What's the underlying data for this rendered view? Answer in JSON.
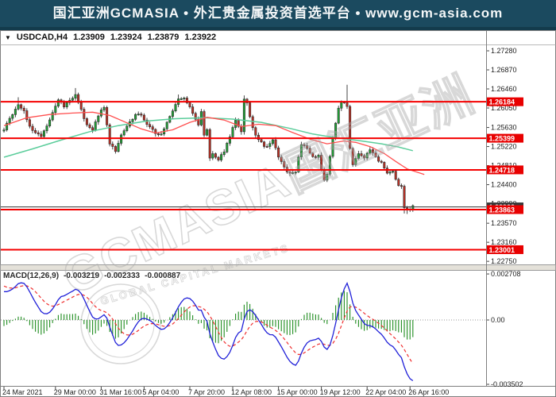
{
  "banner": {
    "text": "国汇亚洲GCMASIA • 外汇贵金属投资首选平台 • www.gcm-asia.com",
    "bg_color": "#1B4A5F",
    "strip_color": "#133B4C"
  },
  "window": {
    "title_symbol": "USDCAD,H4",
    "open": "1.23909",
    "high": "1.23924",
    "low": "1.23879",
    "close": "1.23922",
    "dropdown_icon": "▼"
  },
  "watermark": {
    "brand": "GCMASIA国汇亚洲",
    "caption": "GLOBAL CAPITAL MARKETS"
  },
  "price_axis": {
    "labels": [
      "1.27280",
      "1.26870",
      "1.26460",
      "1.26050",
      "1.25630",
      "1.25220",
      "1.24810",
      "1.24400",
      "1.23990",
      "1.23570",
      "1.23160",
      "1.22750"
    ],
    "level_labels": [
      {
        "text": "1.26184",
        "price": 1.26184
      },
      {
        "text": "1.25399",
        "price": 1.25399
      },
      {
        "text": "1.24718",
        "price": 1.24718
      },
      {
        "text": "1.23863",
        "price": 1.23863
      },
      {
        "text": "1.23001",
        "price": 1.23001
      }
    ],
    "current_price_label": {
      "text": "1.23922",
      "price": 1.23922
    }
  },
  "time_axis": {
    "labels": [
      {
        "text": "24 Mar 2021",
        "bar": 0
      },
      {
        "text": "29 Mar 00:00",
        "bar": 18
      },
      {
        "text": "31 Mar 16:00",
        "bar": 34
      },
      {
        "text": "5 Apr 04:00",
        "bar": 49
      },
      {
        "text": "7 Apr 20:00",
        "bar": 65
      },
      {
        "text": "12 Apr 08:00",
        "bar": 80
      },
      {
        "text": "15 Apr 00:00",
        "bar": 96
      },
      {
        "text": "19 Apr 12:00",
        "bar": 111
      },
      {
        "text": "22 Apr 04:00",
        "bar": 127
      },
      {
        "text": "26 Apr 16:00",
        "bar": 142
      }
    ]
  },
  "macd_panel": {
    "label": "MACD(12,26,9)",
    "value_main": "-0.003219",
    "value_signal": "-0.002333",
    "value_hist": "-0.000887",
    "axis_labels": [
      {
        "text": "0.002708",
        "value": 0.002708
      },
      {
        "text": "0.00",
        "value": 0
      },
      {
        "text": "-0.003502",
        "value": -0.003502
      }
    ]
  },
  "colors": {
    "candle_up": "#21A437",
    "candle_down": "#BE3226",
    "candle_border": "#2a2a2a",
    "wick": "#333333",
    "h_level": "#F40000",
    "current_line": "#4a4a4a",
    "ma_fast": "#FF5050",
    "ma_slow": "#5BCD9B",
    "macd_line": "#2020D8",
    "signal_line": "#F03030",
    "hist": "#1E8C1E",
    "badge_red": "#E80000",
    "badge_dark": "#3A3A3A",
    "frame": "#7F7F7F",
    "axis_text": "#1c1c1c",
    "watermark": "#A9A9A9"
  },
  "chart_data": {
    "type": "candlestick_with_macd",
    "symbol": "USDCAD",
    "timeframe": "H4",
    "visible_bars": 144,
    "price_range_labels": [
      1.2728,
      1.2275
    ],
    "h_levels": [
      1.26184,
      1.25399,
      1.24718,
      1.23863,
      1.23001
    ],
    "current_price_line": 1.23922,
    "close_anchors": [
      [
        0,
        1.256
      ],
      [
        1,
        1.2572
      ],
      [
        3,
        1.259
      ],
      [
        5,
        1.2615
      ],
      [
        7,
        1.26
      ],
      [
        9,
        1.2565
      ],
      [
        11,
        1.255
      ],
      [
        13,
        1.2542
      ],
      [
        15,
        1.2568
      ],
      [
        17,
        1.2595
      ],
      [
        19,
        1.262
      ],
      [
        21,
        1.261
      ],
      [
        23,
        1.2622
      ],
      [
        25,
        1.2632
      ],
      [
        27,
        1.26
      ],
      [
        29,
        1.257
      ],
      [
        31,
        1.2555
      ],
      [
        33,
        1.259
      ],
      [
        35,
        1.2608
      ],
      [
        37,
        1.253
      ],
      [
        39,
        1.2512
      ],
      [
        41,
        1.2545
      ],
      [
        43,
        1.2568
      ],
      [
        45,
        1.2583
      ],
      [
        47,
        1.2595
      ],
      [
        49,
        1.258
      ],
      [
        51,
        1.2565
      ],
      [
        53,
        1.2548
      ],
      [
        55,
        1.255
      ],
      [
        57,
        1.2572
      ],
      [
        59,
        1.26
      ],
      [
        61,
        1.2622
      ],
      [
        63,
        1.2625
      ],
      [
        64,
        1.2615
      ],
      [
        66,
        1.2595
      ],
      [
        68,
        1.257
      ],
      [
        69,
        1.2598
      ],
      [
        70,
        1.2545
      ],
      [
        71,
        1.256
      ],
      [
        72,
        1.25
      ],
      [
        73,
        1.2505
      ],
      [
        75,
        1.2495
      ],
      [
        77,
        1.251
      ],
      [
        79,
        1.2545
      ],
      [
        81,
        1.258
      ],
      [
        83,
        1.2555
      ],
      [
        84,
        1.2627
      ],
      [
        85,
        1.2615
      ],
      [
        86,
        1.2585
      ],
      [
        88,
        1.2545
      ],
      [
        90,
        1.253
      ],
      [
        92,
        1.252
      ],
      [
        94,
        1.2535
      ],
      [
        96,
        1.25
      ],
      [
        98,
        1.2478
      ],
      [
        100,
        1.2462
      ],
      [
        102,
        1.247
      ],
      [
        104,
        1.2528
      ],
      [
        106,
        1.2515
      ],
      [
        108,
        1.2498
      ],
      [
        110,
        1.2502
      ],
      [
        112,
        1.2448
      ],
      [
        113,
        1.246
      ],
      [
        114,
        1.25
      ],
      [
        115,
        1.254
      ],
      [
        116,
        1.2575
      ],
      [
        117,
        1.2605
      ],
      [
        118,
        1.262
      ],
      [
        119,
        1.2615
      ],
      [
        120,
        1.261
      ],
      [
        121,
        1.2515
      ],
      [
        122,
        1.2485
      ],
      [
        124,
        1.2505
      ],
      [
        126,
        1.25
      ],
      [
        128,
        1.2515
      ],
      [
        130,
        1.2498
      ],
      [
        132,
        1.2488
      ],
      [
        134,
        1.2465
      ],
      [
        136,
        1.2468
      ],
      [
        137,
        1.2452
      ],
      [
        138,
        1.244
      ],
      [
        139,
        1.2438
      ],
      [
        140,
        1.239
      ],
      [
        141,
        1.2385
      ],
      [
        142,
        1.239
      ],
      [
        143,
        1.2392
      ]
    ],
    "prehistory_anchors": [
      [
        -64,
        1.2395
      ],
      [
        -44,
        1.2448
      ],
      [
        -24,
        1.2505
      ],
      [
        -12,
        1.2548
      ],
      [
        -6,
        1.2572
      ],
      [
        -1,
        1.2556
      ]
    ],
    "wick_high_overrides": {
      "5": 1.2628,
      "25": 1.2648,
      "61": 1.2634,
      "84": 1.2632,
      "120": 1.2655
    },
    "wick_low_overrides": {
      "140": 1.2378,
      "141": 1.2377
    },
    "ma_fast_red": [
      [
        0,
        1.2567
      ],
      [
        8,
        1.2584
      ],
      [
        16,
        1.2591
      ],
      [
        24,
        1.2594
      ],
      [
        31,
        1.2596
      ],
      [
        37,
        1.2589
      ],
      [
        43,
        1.2573
      ],
      [
        48,
        1.256
      ],
      [
        53,
        1.2551
      ],
      [
        59,
        1.2558
      ],
      [
        65,
        1.2574
      ],
      [
        71,
        1.2585
      ],
      [
        77,
        1.2579
      ],
      [
        83,
        1.2565
      ],
      [
        89,
        1.257
      ],
      [
        95,
        1.2567
      ],
      [
        101,
        1.2552
      ],
      [
        107,
        1.2538
      ],
      [
        113,
        1.2528
      ],
      [
        119,
        1.2534
      ],
      [
        123,
        1.2531
      ],
      [
        128,
        1.2522
      ],
      [
        133,
        1.2507
      ],
      [
        137,
        1.249
      ],
      [
        141,
        1.2474
      ],
      [
        147,
        1.2462
      ]
    ],
    "ma_slow_green": [
      [
        0,
        1.2499
      ],
      [
        10,
        1.2517
      ],
      [
        20,
        1.2536
      ],
      [
        30,
        1.2554
      ],
      [
        40,
        1.2567
      ],
      [
        50,
        1.2577
      ],
      [
        60,
        1.2582
      ],
      [
        70,
        1.2584
      ],
      [
        80,
        1.2581
      ],
      [
        90,
        1.2574
      ],
      [
        100,
        1.2561
      ],
      [
        108,
        1.2549
      ],
      [
        116,
        1.2541
      ],
      [
        124,
        1.2535
      ],
      [
        132,
        1.2528
      ],
      [
        138,
        1.2521
      ],
      [
        143,
        1.2513
      ]
    ],
    "macd_params": {
      "fast": 12,
      "slow": 26,
      "signal": 9
    }
  }
}
